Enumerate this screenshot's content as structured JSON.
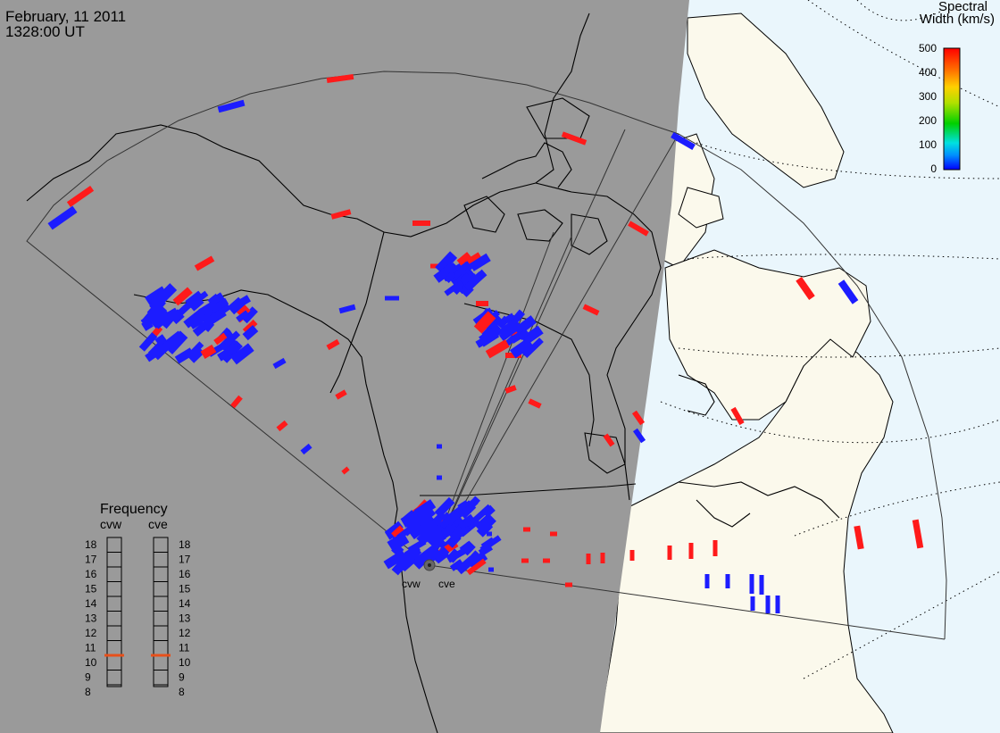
{
  "header": {
    "date": "February, 11 2011",
    "time": "1328:00 UT"
  },
  "colorbar": {
    "title_line1": "Spectral",
    "title_line2": "Width (km/s)",
    "ticks": [
      "500",
      "400",
      "300",
      "200",
      "100",
      "0"
    ]
  },
  "frequency": {
    "title": "Frequency",
    "radars": [
      {
        "name": "cvw",
        "value": 11
      },
      {
        "name": "cve",
        "value": 11
      }
    ],
    "scale": [
      "18",
      "17",
      "16",
      "15",
      "14",
      "13",
      "12",
      "11",
      "10",
      "9",
      "8"
    ]
  },
  "radar_labels": {
    "west": "cvw",
    "east": "cve"
  },
  "colors": {
    "night": "#9a9a9a",
    "day_land": "#fbf9ec",
    "day_ocean": "#eaf6fc",
    "low_width": "#1c1cff",
    "high_width": "#ff1a1a",
    "frequency_marker": "#e8501a"
  }
}
